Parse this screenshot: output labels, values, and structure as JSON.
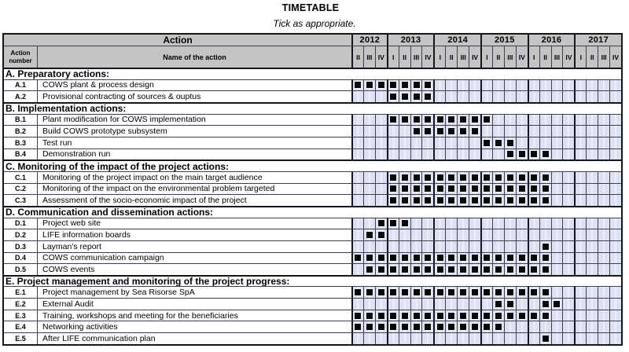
{
  "page": {
    "title": "TIMETABLE",
    "subtitle": "Tick as appropriate."
  },
  "table": {
    "action_header": "Action",
    "number_col_header": "Action\nnumber",
    "name_col_header": "Name of the action",
    "years": [
      {
        "label": "2012",
        "quarters": [
          "II",
          "III",
          "IV"
        ]
      },
      {
        "label": "2013",
        "quarters": [
          "I",
          "II",
          "III",
          "IV"
        ]
      },
      {
        "label": "2014",
        "quarters": [
          "I",
          "II",
          "III",
          "IV"
        ]
      },
      {
        "label": "2015",
        "quarters": [
          "I",
          "II",
          "III",
          "IV"
        ]
      },
      {
        "label": "2016",
        "quarters": [
          "I",
          "II",
          "III",
          "IV"
        ]
      },
      {
        "label": "2017",
        "quarters": [
          "I",
          "II",
          "III",
          "IV"
        ]
      }
    ],
    "sections": [
      {
        "label": "A. Preparatory actions:",
        "rows": [
          {
            "number": "A.1",
            "name": "COWS plant & process design",
            "ticks": [
              1,
              2,
              3,
              4,
              5,
              6,
              7
            ]
          },
          {
            "number": "A.2",
            "name": "Provisional contracting of sources & ouptus",
            "ticks": [
              4,
              5,
              6,
              7
            ]
          }
        ]
      },
      {
        "label": "B. Implementation actions:",
        "rows": [
          {
            "number": "B.1",
            "name": "Plant modification for COWS implementation",
            "ticks": [
              4,
              5,
              6,
              7,
              8,
              9,
              10,
              11,
              12
            ]
          },
          {
            "number": "B.2",
            "name": "Build COWS prototype subsystem",
            "ticks": [
              6,
              7,
              8,
              9,
              10,
              11
            ]
          },
          {
            "number": "B.3",
            "name": "Test run",
            "ticks": [
              12,
              13,
              14
            ]
          },
          {
            "number": "B.4",
            "name": "Demonstration run",
            "ticks": [
              14,
              15,
              16,
              17
            ]
          }
        ]
      },
      {
        "label": "C. Monitoring of the impact of the project actions:",
        "rows": [
          {
            "number": "C.1",
            "name": "Monitoring of the project impact on the main target audience",
            "ticks": [
              4,
              5,
              6,
              7,
              8,
              9,
              10,
              11,
              12,
              13,
              14,
              15,
              16,
              17
            ]
          },
          {
            "number": "C.2",
            "name": "Monitoring of the impact on the environmental problem targeted",
            "ticks": [
              4,
              5,
              6,
              7,
              8,
              9,
              10,
              11,
              12,
              13,
              14,
              15,
              16,
              17
            ]
          },
          {
            "number": "C.3",
            "name": "Assessment of the socio-economic impact of the project",
            "ticks": [
              4,
              5,
              6,
              7,
              8,
              9,
              10,
              11,
              12,
              13,
              14,
              15,
              16,
              17
            ]
          }
        ]
      },
      {
        "label": "D. Communication and dissemination actions:",
        "rows": [
          {
            "number": "D.1",
            "name": "Project web site",
            "ticks": [
              3,
              4,
              5
            ]
          },
          {
            "number": "D.2",
            "name": "LIFE information boards",
            "ticks": [
              2,
              3
            ]
          },
          {
            "number": "D.3",
            "name": "Layman's report",
            "ticks": [
              17
            ]
          },
          {
            "number": "D.4",
            "name": "COWS communication campaign",
            "ticks": [
              1,
              2,
              3,
              4,
              5,
              6,
              7,
              8,
              9,
              10,
              11,
              12,
              13,
              14,
              15,
              16,
              17
            ]
          },
          {
            "number": "D.5",
            "name": "COWS  events",
            "ticks": [
              2,
              3,
              4,
              5,
              6,
              7,
              8,
              9,
              10,
              11,
              12,
              13,
              14,
              15,
              16,
              17
            ]
          }
        ]
      },
      {
        "label": "E. Project management and monitoring of the project progress:",
        "rows": [
          {
            "number": "E.1",
            "name": "Project management by Sea Risorse SpA",
            "ticks": [
              1,
              2,
              3,
              4,
              5,
              6,
              7,
              8,
              9,
              10,
              11,
              12,
              13,
              14,
              15,
              16,
              17
            ]
          },
          {
            "number": "E.2",
            "name": "External Audit",
            "ticks": [
              13,
              14,
              17,
              18
            ]
          },
          {
            "number": "E.3",
            "name": "Training, workshops and meeting for the beneficiaries",
            "ticks": [
              1,
              2,
              3,
              4,
              5,
              6,
              7,
              8,
              9,
              10,
              11,
              12,
              13,
              14,
              15,
              16,
              17
            ]
          },
          {
            "number": "E.4",
            "name": "Networking activities",
            "ticks": [
              1,
              2,
              3,
              4,
              5,
              6,
              7,
              8,
              9,
              10,
              11,
              12,
              13
            ]
          },
          {
            "number": "E.5",
            "name": "After LIFE communication plan",
            "ticks": [
              17
            ]
          }
        ]
      }
    ]
  },
  "colors": {
    "header_bg": "#c4c4c4",
    "quarter_cell_bg": "#dde1f1",
    "grid_line": "#3c4050",
    "outer_border": "#15171e",
    "tick": "#0a0a0a"
  }
}
